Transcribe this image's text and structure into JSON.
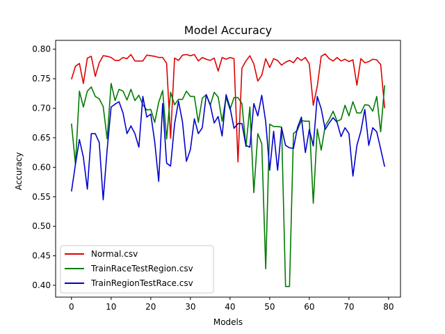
{
  "chart_data": {
    "type": "line",
    "title": "Model Accuracy",
    "xlabel": "Models",
    "ylabel": "Accuracy",
    "xlim": [
      -4,
      83
    ],
    "ylim": [
      0.38,
      0.815
    ],
    "xticks": [
      0,
      10,
      20,
      30,
      40,
      50,
      60,
      70,
      80
    ],
    "yticks": [
      0.4,
      0.45,
      0.5,
      0.55,
      0.6,
      0.65,
      0.7,
      0.75,
      0.8
    ],
    "xtick_labels": [
      "0",
      "10",
      "20",
      "30",
      "40",
      "50",
      "60",
      "70",
      "80"
    ],
    "ytick_labels": [
      "0.40",
      "0.45",
      "0.50",
      "0.55",
      "0.60",
      "0.65",
      "0.70",
      "0.75",
      "0.80"
    ],
    "grid": false,
    "legend_position": "lower-left",
    "series": [
      {
        "name": "Normal.csv",
        "color": "#dd0000",
        "values": [
          0.749,
          0.771,
          0.776,
          0.742,
          0.785,
          0.788,
          0.754,
          0.777,
          0.789,
          0.788,
          0.786,
          0.781,
          0.781,
          0.786,
          0.784,
          0.791,
          0.78,
          0.78,
          0.78,
          0.79,
          0.789,
          0.788,
          0.786,
          0.786,
          0.776,
          0.649,
          0.785,
          0.781,
          0.79,
          0.791,
          0.789,
          0.791,
          0.78,
          0.786,
          0.783,
          0.781,
          0.785,
          0.763,
          0.786,
          0.783,
          0.786,
          0.784,
          0.609,
          0.768,
          0.78,
          0.789,
          0.775,
          0.746,
          0.756,
          0.784,
          0.769,
          0.784,
          0.781,
          0.773,
          0.778,
          0.781,
          0.777,
          0.786,
          0.781,
          0.786,
          0.775,
          0.705,
          0.737,
          0.788,
          0.792,
          0.784,
          0.78,
          0.786,
          0.78,
          0.783,
          0.779,
          0.782,
          0.739,
          0.784,
          0.777,
          0.779,
          0.783,
          0.782,
          0.774,
          0.7
        ]
      },
      {
        "name": "TrainRaceTestRegion.csv",
        "color": "#007a00",
        "values": [
          0.674,
          0.605,
          0.729,
          0.702,
          0.729,
          0.736,
          0.72,
          0.716,
          0.703,
          0.648,
          0.742,
          0.713,
          0.732,
          0.729,
          0.714,
          0.732,
          0.713,
          0.722,
          0.706,
          0.697,
          0.698,
          0.676,
          0.71,
          0.73,
          0.648,
          0.727,
          0.706,
          0.715,
          0.715,
          0.729,
          0.72,
          0.72,
          0.676,
          0.717,
          0.723,
          0.705,
          0.727,
          0.719,
          0.678,
          0.718,
          0.698,
          0.718,
          0.718,
          0.708,
          0.635,
          0.702,
          0.557,
          0.657,
          0.64,
          0.428,
          0.673,
          0.669,
          0.669,
          0.668,
          0.398,
          0.398,
          0.657,
          0.663,
          0.679,
          0.678,
          0.678,
          0.539,
          0.665,
          0.629,
          0.67,
          0.681,
          0.695,
          0.678,
          0.681,
          0.705,
          0.687,
          0.711,
          0.692,
          0.692,
          0.706,
          0.705,
          0.695,
          0.72,
          0.66,
          0.739
        ]
      },
      {
        "name": "TrainRegionTestRace.csv",
        "color": "#0000cc",
        "values": [
          0.559,
          0.605,
          0.647,
          0.617,
          0.563,
          0.657,
          0.657,
          0.642,
          0.545,
          0.63,
          0.702,
          0.707,
          0.711,
          0.692,
          0.657,
          0.67,
          0.657,
          0.634,
          0.72,
          0.685,
          0.69,
          0.643,
          0.576,
          0.708,
          0.607,
          0.602,
          0.673,
          0.712,
          0.677,
          0.61,
          0.63,
          0.682,
          0.657,
          0.667,
          0.723,
          0.706,
          0.675,
          0.686,
          0.653,
          0.723,
          0.701,
          0.666,
          0.674,
          0.674,
          0.637,
          0.634,
          0.708,
          0.687,
          0.722,
          0.677,
          0.595,
          0.661,
          0.595,
          0.667,
          0.637,
          0.633,
          0.632,
          0.667,
          0.685,
          0.625,
          0.664,
          0.636,
          0.72,
          0.699,
          0.664,
          0.675,
          0.684,
          0.676,
          0.652,
          0.667,
          0.657,
          0.585,
          0.637,
          0.661,
          0.698,
          0.637,
          0.667,
          0.66,
          0.631,
          0.601
        ]
      }
    ]
  }
}
